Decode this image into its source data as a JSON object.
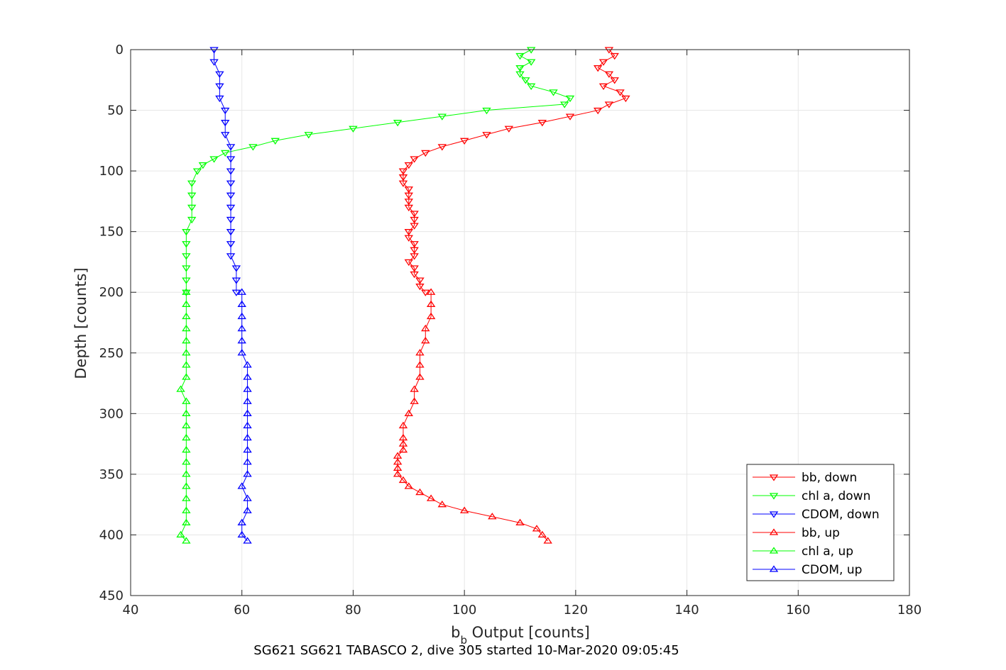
{
  "caption": "SG621 SG621 TABASCO 2, dive 305 started 10-Mar-2020 09:05:45",
  "chart_data": {
    "type": "scatter",
    "xlabel_main": "b",
    "xlabel_sub": "b",
    "xlabel_rest": " Output [counts]",
    "ylabel": "Depth [counts]",
    "xlim": [
      40,
      180
    ],
    "ylim": [
      0,
      450
    ],
    "y_reversed": true,
    "grid": true,
    "legend_position": "bottom-right",
    "x_ticks": [
      "40",
      "60",
      "80",
      "100",
      "120",
      "140",
      "160",
      "180"
    ],
    "y_ticks": [
      "0",
      "50",
      "100",
      "150",
      "200",
      "250",
      "300",
      "350",
      "400",
      "450"
    ],
    "series": [
      {
        "name": "bb, down",
        "color": "#ff0000",
        "marker": "triangle-down",
        "depth": [
          0,
          5,
          10,
          15,
          20,
          25,
          30,
          35,
          40,
          45,
          50,
          55,
          60,
          65,
          70,
          75,
          80,
          85,
          90,
          95,
          100,
          105,
          110,
          115,
          120,
          125,
          130,
          135,
          140,
          145,
          150,
          155,
          160,
          165,
          170,
          175,
          180,
          185,
          190,
          195,
          200
        ],
        "value": [
          126,
          127,
          125,
          124,
          126,
          127,
          125,
          128,
          129,
          126,
          124,
          119,
          114,
          108,
          104,
          100,
          96,
          93,
          91,
          90,
          89,
          89,
          89,
          90,
          90,
          90,
          90,
          91,
          91,
          91,
          90,
          90,
          91,
          91,
          91,
          90,
          91,
          91,
          92,
          92,
          93
        ]
      },
      {
        "name": "chl a, down",
        "color": "#00ff00",
        "marker": "triangle-down",
        "depth": [
          0,
          5,
          10,
          15,
          20,
          25,
          30,
          35,
          40,
          45,
          50,
          55,
          60,
          65,
          70,
          75,
          80,
          85,
          90,
          95,
          100,
          110,
          120,
          130,
          140,
          150,
          160,
          170,
          180,
          190,
          200
        ],
        "value": [
          112,
          110,
          112,
          110,
          110,
          111,
          112,
          116,
          119,
          118,
          104,
          96,
          88,
          80,
          72,
          66,
          62,
          57,
          55,
          53,
          52,
          51,
          51,
          51,
          51,
          50,
          50,
          50,
          50,
          50,
          50
        ]
      },
      {
        "name": "CDOM, down",
        "color": "#0000ff",
        "marker": "triangle-down",
        "depth": [
          0,
          10,
          20,
          30,
          40,
          50,
          60,
          70,
          80,
          90,
          100,
          110,
          120,
          130,
          140,
          150,
          160,
          170,
          180,
          190,
          200
        ],
        "value": [
          55,
          55,
          56,
          56,
          56,
          57,
          57,
          57,
          58,
          58,
          58,
          58,
          58,
          58,
          58,
          58,
          58,
          58,
          59,
          59,
          59
        ]
      },
      {
        "name": "bb, up",
        "color": "#ff0000",
        "marker": "triangle-up",
        "depth": [
          405,
          400,
          395,
          390,
          385,
          380,
          375,
          370,
          365,
          360,
          355,
          350,
          345,
          340,
          335,
          330,
          325,
          320,
          310,
          300,
          290,
          280,
          270,
          260,
          250,
          240,
          230,
          220,
          210,
          200
        ],
        "value": [
          115,
          114,
          113,
          110,
          105,
          100,
          96,
          94,
          92,
          90,
          89,
          88,
          88,
          88,
          88,
          89,
          89,
          89,
          89,
          90,
          91,
          91,
          92,
          92,
          92,
          93,
          93,
          94,
          94,
          94
        ]
      },
      {
        "name": "chl a, up",
        "color": "#00ff00",
        "marker": "triangle-up",
        "depth": [
          405,
          400,
          390,
          380,
          370,
          360,
          350,
          340,
          330,
          320,
          310,
          300,
          290,
          280,
          270,
          260,
          250,
          240,
          230,
          220,
          210,
          200
        ],
        "value": [
          50,
          49,
          50,
          50,
          50,
          50,
          50,
          50,
          50,
          50,
          50,
          50,
          50,
          49,
          50,
          50,
          50,
          50,
          50,
          50,
          50,
          50
        ]
      },
      {
        "name": "CDOM, up",
        "color": "#0000ff",
        "marker": "triangle-up",
        "depth": [
          405,
          400,
          390,
          380,
          370,
          360,
          350,
          340,
          330,
          320,
          310,
          300,
          290,
          280,
          270,
          260,
          250,
          240,
          230,
          220,
          210,
          200
        ],
        "value": [
          61,
          60,
          60,
          61,
          61,
          60,
          61,
          61,
          61,
          61,
          61,
          61,
          61,
          61,
          61,
          61,
          60,
          60,
          60,
          60,
          60,
          60
        ]
      }
    ]
  }
}
